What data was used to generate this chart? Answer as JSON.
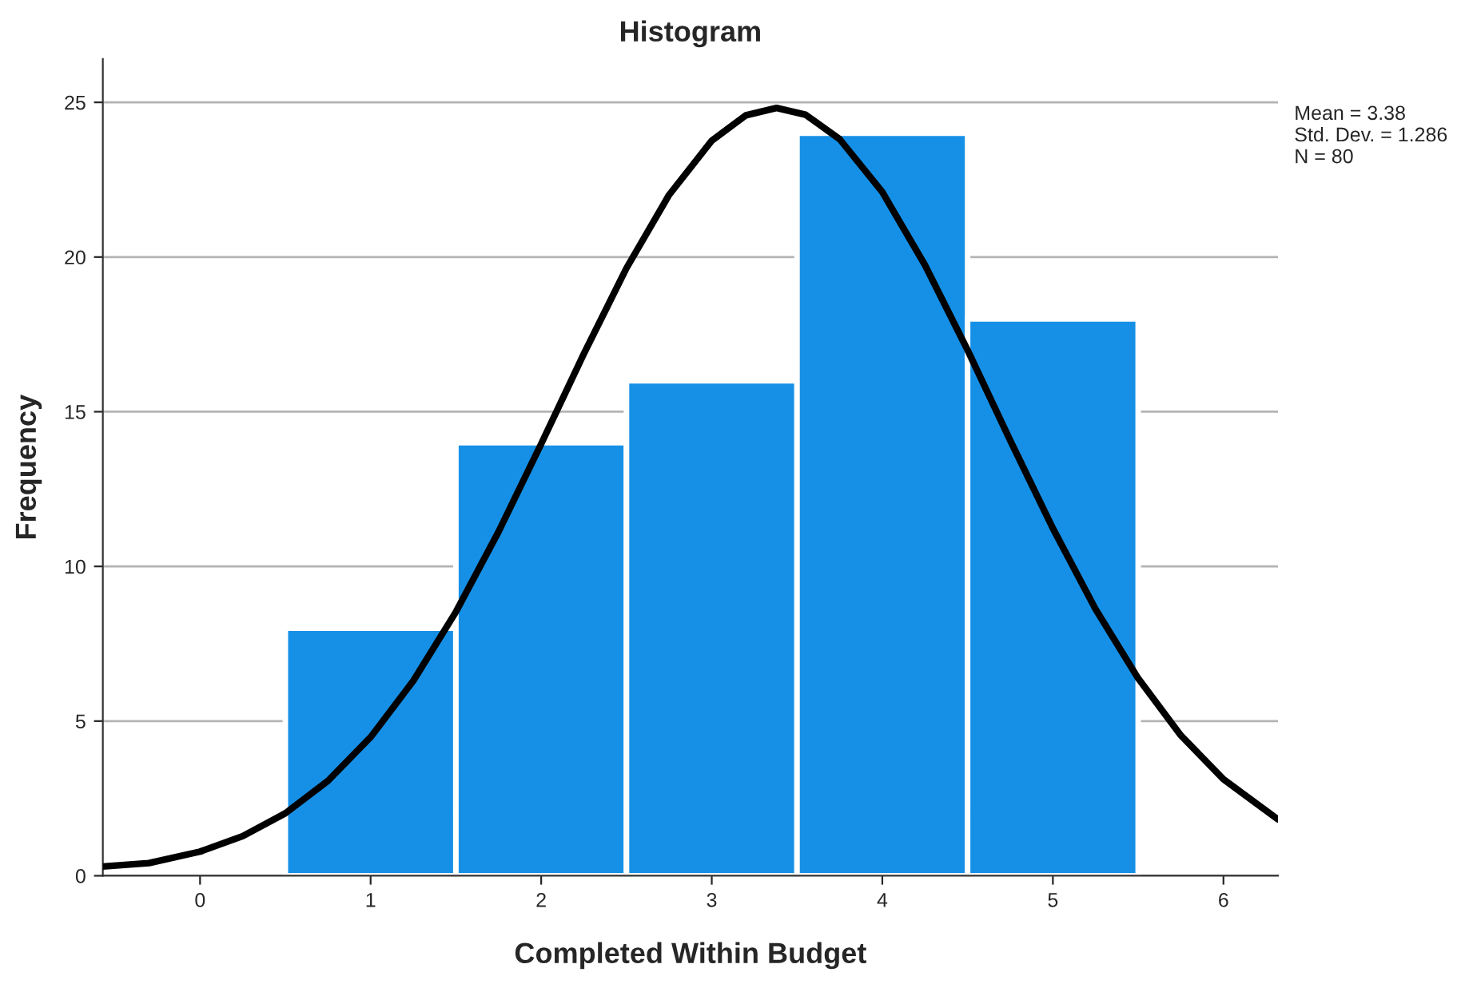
{
  "chart_data": {
    "type": "histogram",
    "title": "Histogram",
    "xlabel": "Completed Within Budget",
    "ylabel": "Frequency",
    "bins": [
      0.5,
      1.5,
      2.5,
      3.5,
      4.5,
      5.5
    ],
    "values": [
      8,
      14,
      16,
      24,
      18
    ],
    "color": "#1690e6",
    "series": [
      {
        "type": "line",
        "color": "#000000",
        "x": [
          -0.57,
          -0.3,
          0,
          0.25,
          0.5,
          0.75,
          1,
          1.25,
          1.5,
          1.75,
          2,
          2.25,
          2.5,
          2.75,
          3,
          3.2,
          3.38,
          3.55,
          3.75,
          4,
          4.25,
          4.5,
          4.75,
          5,
          5.25,
          5.5,
          5.75,
          6,
          6.32
        ],
        "values": [
          0.3,
          0.41,
          0.78,
          1.28,
          2.02,
          3.07,
          4.48,
          6.3,
          8.53,
          11.12,
          13.96,
          16.87,
          19.64,
          22.01,
          23.76,
          24.58,
          24.82,
          24.6,
          23.81,
          22.1,
          19.74,
          16.99,
          14.07,
          11.23,
          8.62,
          6.38,
          4.54,
          3.12,
          1.82
        ]
      }
    ],
    "xlim": [
      -0.57,
      6.32
    ],
    "ylim": [
      0,
      26.4
    ],
    "xticks": [
      0,
      1,
      2,
      3,
      4,
      5,
      6
    ],
    "yticks": [
      0,
      5,
      10,
      15,
      20,
      25
    ],
    "grid": "y",
    "annotations": [
      "Mean = 3.38",
      "Std. Dev. = 1.286",
      "N = 80"
    ]
  }
}
